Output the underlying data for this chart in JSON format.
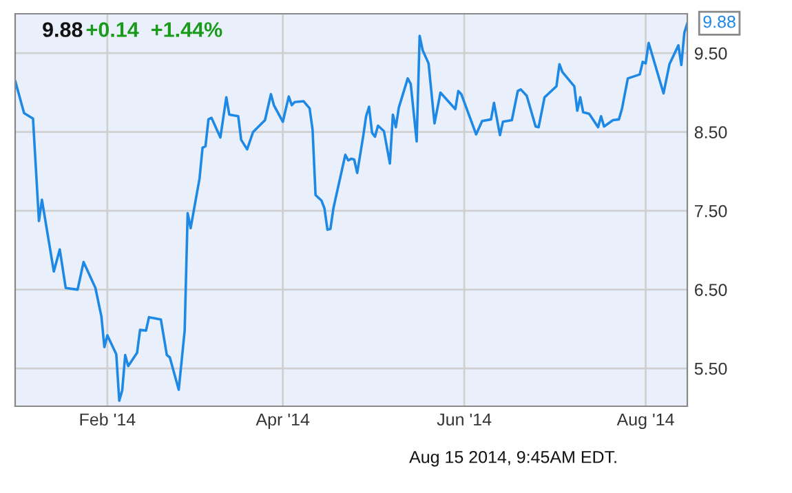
{
  "chart_data": {
    "type": "line",
    "title": "9.88",
    "subtitle": "+0.14  +1.44%",
    "x": [
      "2014-01-01",
      "2014-01-04",
      "2014-01-07",
      "2014-01-09",
      "2014-01-10",
      "2014-01-14",
      "2014-01-16",
      "2014-01-18",
      "2014-01-22",
      "2014-01-24",
      "2014-01-28",
      "2014-01-30",
      "2014-01-31",
      "2014-02-01",
      "2014-02-04",
      "2014-02-05",
      "2014-02-06",
      "2014-02-07",
      "2014-02-08",
      "2014-02-11",
      "2014-02-12",
      "2014-02-14",
      "2014-02-15",
      "2014-02-19",
      "2014-02-21",
      "2014-02-22",
      "2014-02-25",
      "2014-02-27",
      "2014-02-28",
      "2014-03-01",
      "2014-03-04",
      "2014-03-05",
      "2014-03-06",
      "2014-03-07",
      "2014-03-08",
      "2014-03-11",
      "2014-03-13",
      "2014-03-14",
      "2014-03-17",
      "2014-03-18",
      "2014-03-20",
      "2014-03-22",
      "2014-03-26",
      "2014-03-28",
      "2014-03-29",
      "2014-04-01",
      "2014-04-03",
      "2014-04-04",
      "2014-04-05",
      "2014-04-08",
      "2014-04-10",
      "2014-04-11",
      "2014-04-12",
      "2014-04-14",
      "2014-04-15",
      "2014-04-16",
      "2014-04-17",
      "2014-04-18",
      "2014-04-22",
      "2014-04-23",
      "2014-04-24",
      "2014-04-25",
      "2014-04-26",
      "2014-04-28",
      "2014-04-29",
      "2014-04-30",
      "2014-05-01",
      "2014-05-02",
      "2014-05-03",
      "2014-05-05",
      "2014-05-07",
      "2014-05-08",
      "2014-05-09",
      "2014-05-10",
      "2014-05-13",
      "2014-05-14",
      "2014-05-16",
      "2014-05-17",
      "2014-05-18",
      "2014-05-20",
      "2014-05-22",
      "2014-05-24",
      "2014-05-29",
      "2014-05-30",
      "2014-05-31",
      "2014-06-05",
      "2014-06-07",
      "2014-06-10",
      "2014-06-11",
      "2014-06-13",
      "2014-06-14",
      "2014-06-17",
      "2014-06-19",
      "2014-06-20",
      "2014-06-22",
      "2014-06-25",
      "2014-06-26",
      "2014-06-28",
      "2014-07-02",
      "2014-07-03",
      "2014-07-04",
      "2014-07-08",
      "2014-07-09",
      "2014-07-10",
      "2014-07-11",
      "2014-07-13",
      "2014-07-16",
      "2014-07-17",
      "2014-07-18",
      "2014-07-21",
      "2014-07-23",
      "2014-07-24",
      "2014-07-26",
      "2014-07-30",
      "2014-07-31",
      "2014-08-01",
      "2014-08-02",
      "2014-08-07",
      "2014-08-09",
      "2014-08-12",
      "2014-08-13",
      "2014-08-14",
      "2014-08-15"
    ],
    "series": [
      {
        "color": "#1e88e5",
        "values": [
          9.15,
          8.74,
          8.67,
          7.37,
          7.64,
          6.73,
          7.01,
          6.52,
          6.5,
          6.85,
          6.52,
          6.16,
          5.77,
          5.92,
          5.68,
          5.09,
          5.22,
          5.67,
          5.53,
          5.7,
          5.99,
          5.98,
          6.15,
          6.12,
          5.67,
          5.64,
          5.23,
          5.98,
          7.47,
          7.28,
          7.91,
          8.3,
          8.32,
          8.66,
          8.68,
          8.43,
          8.94,
          8.72,
          8.7,
          8.4,
          8.28,
          8.5,
          8.65,
          8.98,
          8.84,
          8.63,
          8.95,
          8.84,
          8.88,
          8.89,
          8.8,
          8.53,
          7.7,
          7.63,
          7.53,
          7.26,
          7.27,
          7.53,
          8.21,
          8.14,
          8.16,
          8.15,
          7.98,
          8.44,
          8.7,
          8.82,
          8.49,
          8.44,
          8.58,
          8.51,
          8.1,
          8.72,
          8.56,
          8.81,
          9.18,
          9.11,
          8.38,
          9.72,
          9.54,
          9.37,
          8.61,
          9.0,
          8.79,
          9.02,
          8.98,
          8.47,
          8.64,
          8.66,
          8.87,
          8.46,
          8.63,
          8.65,
          9.02,
          9.04,
          8.96,
          8.57,
          8.56,
          8.94,
          9.08,
          9.36,
          9.26,
          9.08,
          8.77,
          8.94,
          8.75,
          8.73,
          8.56,
          8.7,
          8.57,
          8.65,
          8.66,
          8.79,
          9.18,
          9.23,
          9.39,
          9.37,
          9.63,
          8.99,
          9.36,
          9.6,
          9.35,
          9.76,
          9.88
        ]
      }
    ],
    "xlim": [
      "2014-01-01",
      "2014-08-15"
    ],
    "xticks": [
      {
        "value": "2014-02-01",
        "label": "Feb '14"
      },
      {
        "value": "2014-04-01",
        "label": "Apr '14"
      },
      {
        "value": "2014-06-01",
        "label": "Jun '14"
      },
      {
        "value": "2014-08-01",
        "label": "Aug '14"
      }
    ],
    "ylim": [
      5.02,
      10.0
    ],
    "yticks": [
      {
        "value": 5.5,
        "label": "5.50"
      },
      {
        "value": 6.5,
        "label": "6.50"
      },
      {
        "value": 7.5,
        "label": "7.50"
      },
      {
        "value": 8.5,
        "label": "8.50"
      },
      {
        "value": 9.5,
        "label": "9.50"
      }
    ],
    "grid": true,
    "annotations": [
      {
        "text": "9.88",
        "x": "2014-08-15",
        "y": 9.88
      },
      "Aug 15 2014, 9:45AM EDT."
    ]
  }
}
